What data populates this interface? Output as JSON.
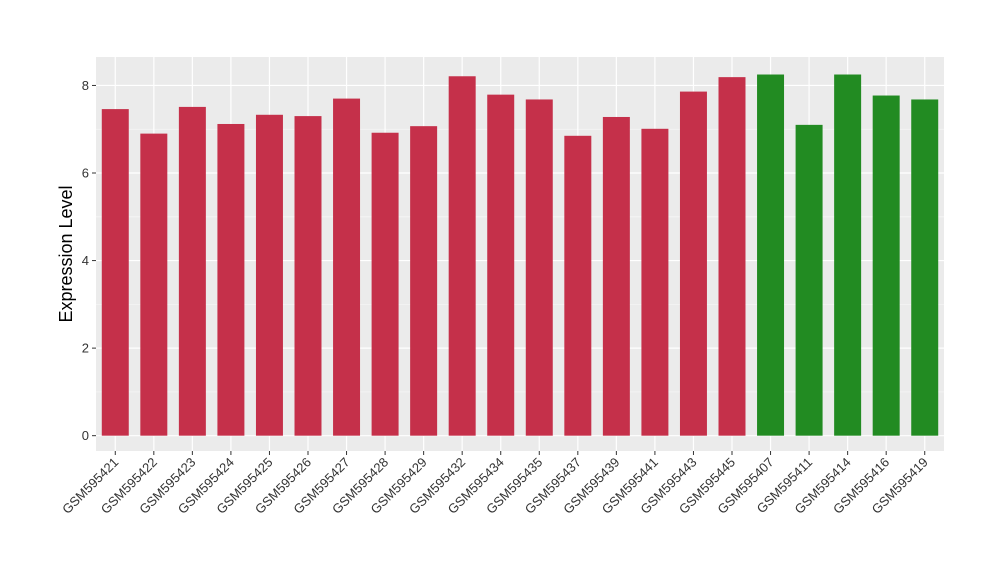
{
  "chart_data": {
    "type": "bar",
    "title": "",
    "xlabel": "",
    "ylabel": "Expression Level",
    "ylim": [
      -0.35,
      8.65
    ],
    "yticks": [
      0,
      2,
      4,
      6,
      8
    ],
    "grid": true,
    "legend": "none",
    "colors": {
      "group_a": "#c5304a",
      "group_b": "#228b22",
      "panel_bg": "#ebebeb",
      "grid_major": "#ffffff",
      "grid_minor": "#f5f5f5"
    },
    "categories": [
      "GSM595421",
      "GSM595422",
      "GSM595423",
      "GSM595424",
      "GSM595425",
      "GSM595426",
      "GSM595427",
      "GSM595428",
      "GSM595429",
      "GSM595432",
      "GSM595434",
      "GSM595435",
      "GSM595437",
      "GSM595439",
      "GSM595441",
      "GSM595443",
      "GSM595445",
      "GSM595407",
      "GSM595411",
      "GSM595414",
      "GSM595416",
      "GSM595419"
    ],
    "values": [
      7.46,
      6.9,
      7.51,
      7.12,
      7.33,
      7.3,
      7.7,
      6.92,
      7.07,
      8.21,
      7.79,
      7.68,
      6.85,
      7.28,
      7.01,
      7.86,
      8.19,
      8.25,
      7.1,
      8.25,
      7.77,
      7.68
    ],
    "groups": [
      "a",
      "a",
      "a",
      "a",
      "a",
      "a",
      "a",
      "a",
      "a",
      "a",
      "a",
      "a",
      "a",
      "a",
      "a",
      "a",
      "a",
      "b",
      "b",
      "b",
      "b",
      "b"
    ]
  }
}
